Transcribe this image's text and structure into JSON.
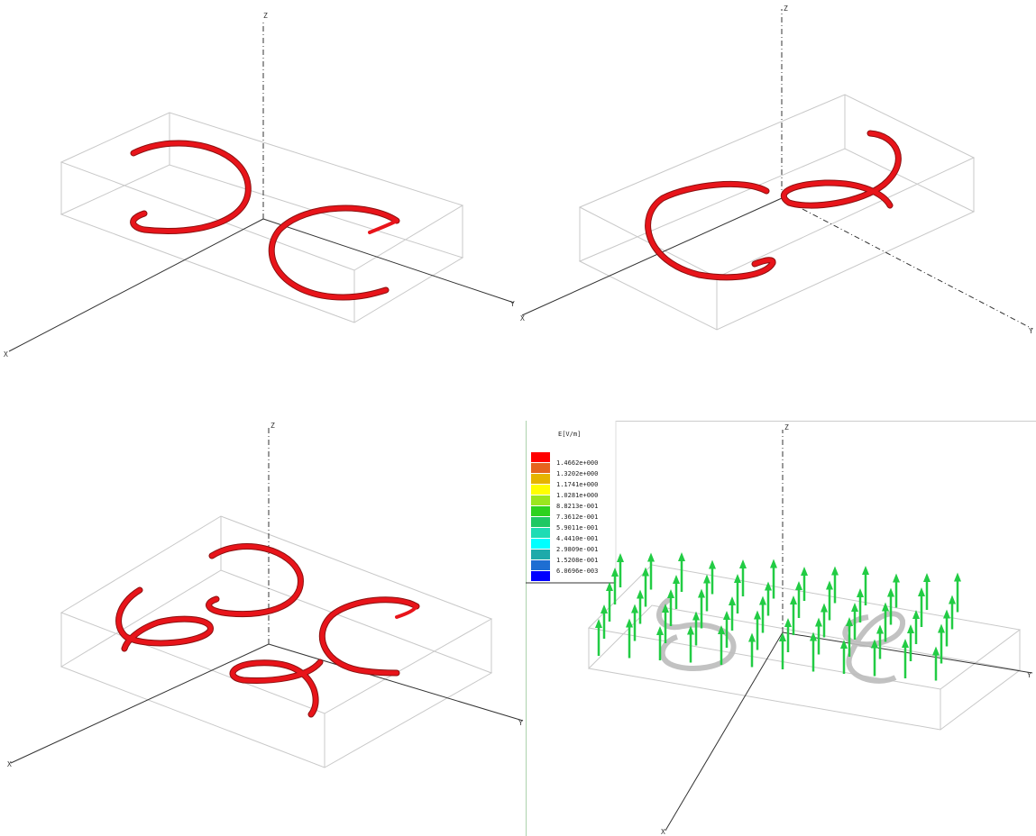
{
  "panels": [
    {
      "axis_labels": {
        "x": "X",
        "y": "Y",
        "z": "Z"
      }
    },
    {
      "axis_labels": {
        "x": "X",
        "y": "Y",
        "z": "Z"
      }
    },
    {
      "axis_labels": {
        "x": "X",
        "y": "Y",
        "z": "Z"
      }
    },
    {
      "axis_labels": {
        "x": "X",
        "y": "Y",
        "z": "Z"
      }
    }
  ],
  "legend": {
    "title": "E[V/m]",
    "entries": [
      {
        "label": "1.4662e+000",
        "color": "#ff0000"
      },
      {
        "label": "1.3202e+000",
        "color": "#e6641e"
      },
      {
        "label": "1.1741e+000",
        "color": "#e6b400"
      },
      {
        "label": "1.0281e+000",
        "color": "#ffff00"
      },
      {
        "label": "8.8213e-001",
        "color": "#9be61e"
      },
      {
        "label": "7.3612e-001",
        "color": "#2dd21e"
      },
      {
        "label": "5.9011e-001",
        "color": "#1ec864"
      },
      {
        "label": "4.4410e-001",
        "color": "#1edcb4"
      },
      {
        "label": "2.9809e-001",
        "color": "#00ffff"
      },
      {
        "label": "1.5208e-001",
        "color": "#1eaaaa"
      },
      {
        "label": "6.0696e-003",
        "color": "#1e6ed2"
      },
      {
        "label": "",
        "color": "#0000ff"
      }
    ]
  },
  "colors": {
    "coil": "#e8141a",
    "coil_shadow": "#8b1010",
    "arrow": "#22cc44",
    "box": "#c8c8c8",
    "axis": "#333333",
    "ring": "#bbbbbb"
  }
}
